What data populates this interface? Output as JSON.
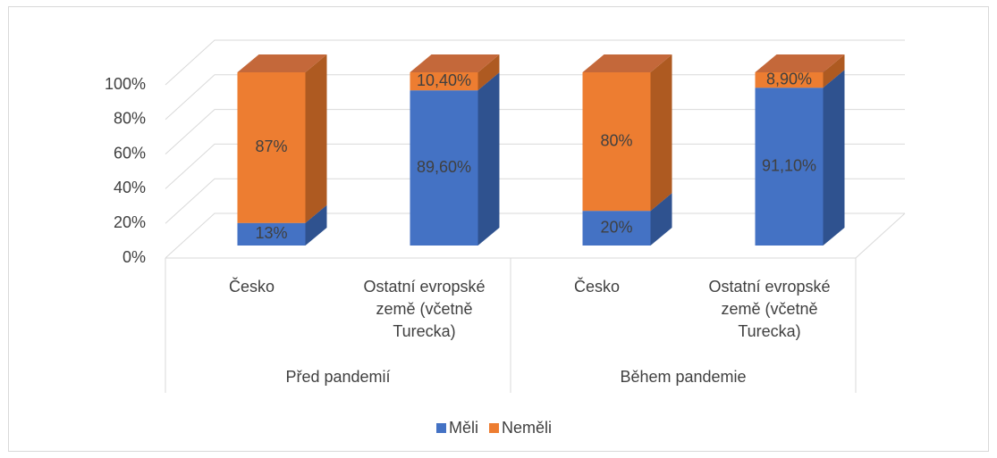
{
  "chart_data": {
    "type": "bar3d_stacked",
    "categories": [
      "Česko",
      "Ostatní evropské země (včetně Turecka)",
      "Česko",
      "Ostatní evropské země (včetně Turecka)"
    ],
    "groups": [
      {
        "label": "Před pandemií",
        "span": 2
      },
      {
        "label": "Během pandemie",
        "span": 2
      }
    ],
    "series": [
      {
        "name": "Měli",
        "color": "#4472c4",
        "side": "#2f528f",
        "top": "#5a87d8",
        "values": [
          13,
          89.6,
          20,
          91.1
        ],
        "value_labels": [
          "13%",
          "89,60%",
          "20%",
          "91,10%"
        ]
      },
      {
        "name": "Neměli",
        "color": "#ed7d31",
        "side": "#ae5a21",
        "top": "#c4683a",
        "values": [
          87,
          10.4,
          80,
          8.9
        ],
        "value_labels": [
          "87%",
          "10,40%",
          "80%",
          "8,90%"
        ]
      }
    ],
    "ylim": [
      0,
      100
    ],
    "yticks": [
      {
        "value": 0,
        "label": "0%"
      },
      {
        "value": 20,
        "label": "20%"
      },
      {
        "value": 40,
        "label": "40%"
      },
      {
        "value": 60,
        "label": "60%"
      },
      {
        "value": 80,
        "label": "80%"
      },
      {
        "value": 100,
        "label": "100%"
      }
    ],
    "grid": true,
    "legend": "bottom"
  }
}
